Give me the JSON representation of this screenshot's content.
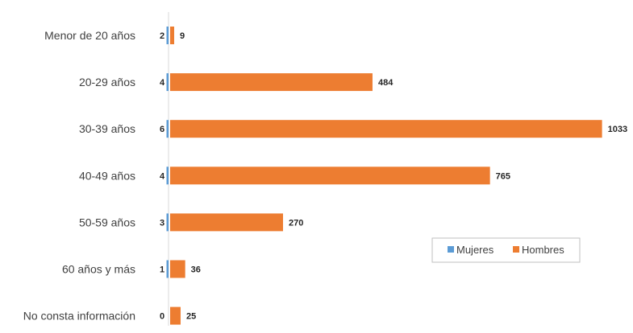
{
  "chart_data": {
    "type": "bar",
    "orientation": "horizontal",
    "categories": [
      "Menor de 20 años",
      "20-29 años",
      "30-39 años",
      "40-49 años",
      "50-59 años",
      "60 años y más",
      "No consta información"
    ],
    "series": [
      {
        "name": "Mujeres",
        "values": [
          2,
          4,
          6,
          4,
          3,
          1,
          0
        ],
        "color": "#5B9BD5"
      },
      {
        "name": "Hombres",
        "values": [
          9,
          484,
          1033,
          765,
          270,
          36,
          25
        ],
        "color": "#ED7D31"
      }
    ],
    "axis_line_color": "#D9D9D9",
    "grid": false,
    "legend_position": "right-inside"
  }
}
